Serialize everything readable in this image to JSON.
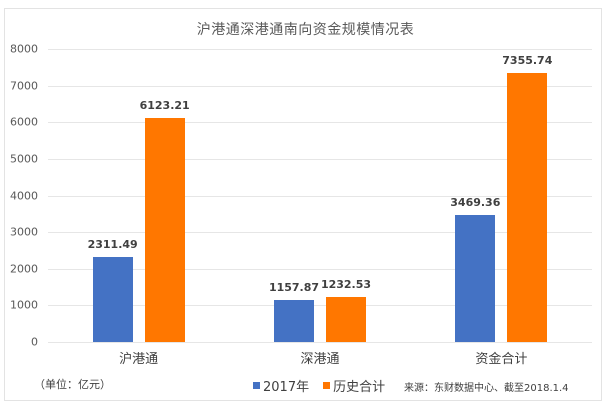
{
  "chart_data": {
    "type": "bar",
    "title": "沪港通深港通南向资金规模情况表",
    "categories": [
      "沪港通",
      "深港通",
      "资金合计"
    ],
    "series": [
      {
        "name": "2017年",
        "color": "#4472C4",
        "values": [
          2311.49,
          1157.87,
          3469.36
        ]
      },
      {
        "name": "历史合计",
        "color": "#FF7700",
        "values": [
          6123.21,
          1232.53,
          7355.74
        ]
      }
    ],
    "xlabel": "",
    "ylabel": "",
    "ylim": [
      0,
      8000
    ],
    "yticks": [
      0,
      1000,
      2000,
      3000,
      4000,
      5000,
      6000,
      7000,
      8000
    ],
    "grid": true,
    "legend_position": "bottom",
    "unit_note": "（单位：亿元）",
    "source_note": "来源：东财数据中心、截至2018.1.4"
  },
  "labels": {
    "title": "沪港通深港通南向资金规模情况表",
    "unit": "（单位：亿元）",
    "source": "来源：东财数据中心、截至2018.1.4",
    "legend": [
      "2017年",
      "历史合计"
    ],
    "categories": [
      "沪港通",
      "深港通",
      "资金合计"
    ],
    "yticks": [
      "0",
      "1000",
      "2000",
      "3000",
      "4000",
      "5000",
      "6000",
      "7000",
      "8000"
    ],
    "values": {
      "s0": [
        "2311.49",
        "1157.87",
        "3469.36"
      ],
      "s1": [
        "6123.21",
        "1232.53",
        "7355.74"
      ]
    }
  }
}
